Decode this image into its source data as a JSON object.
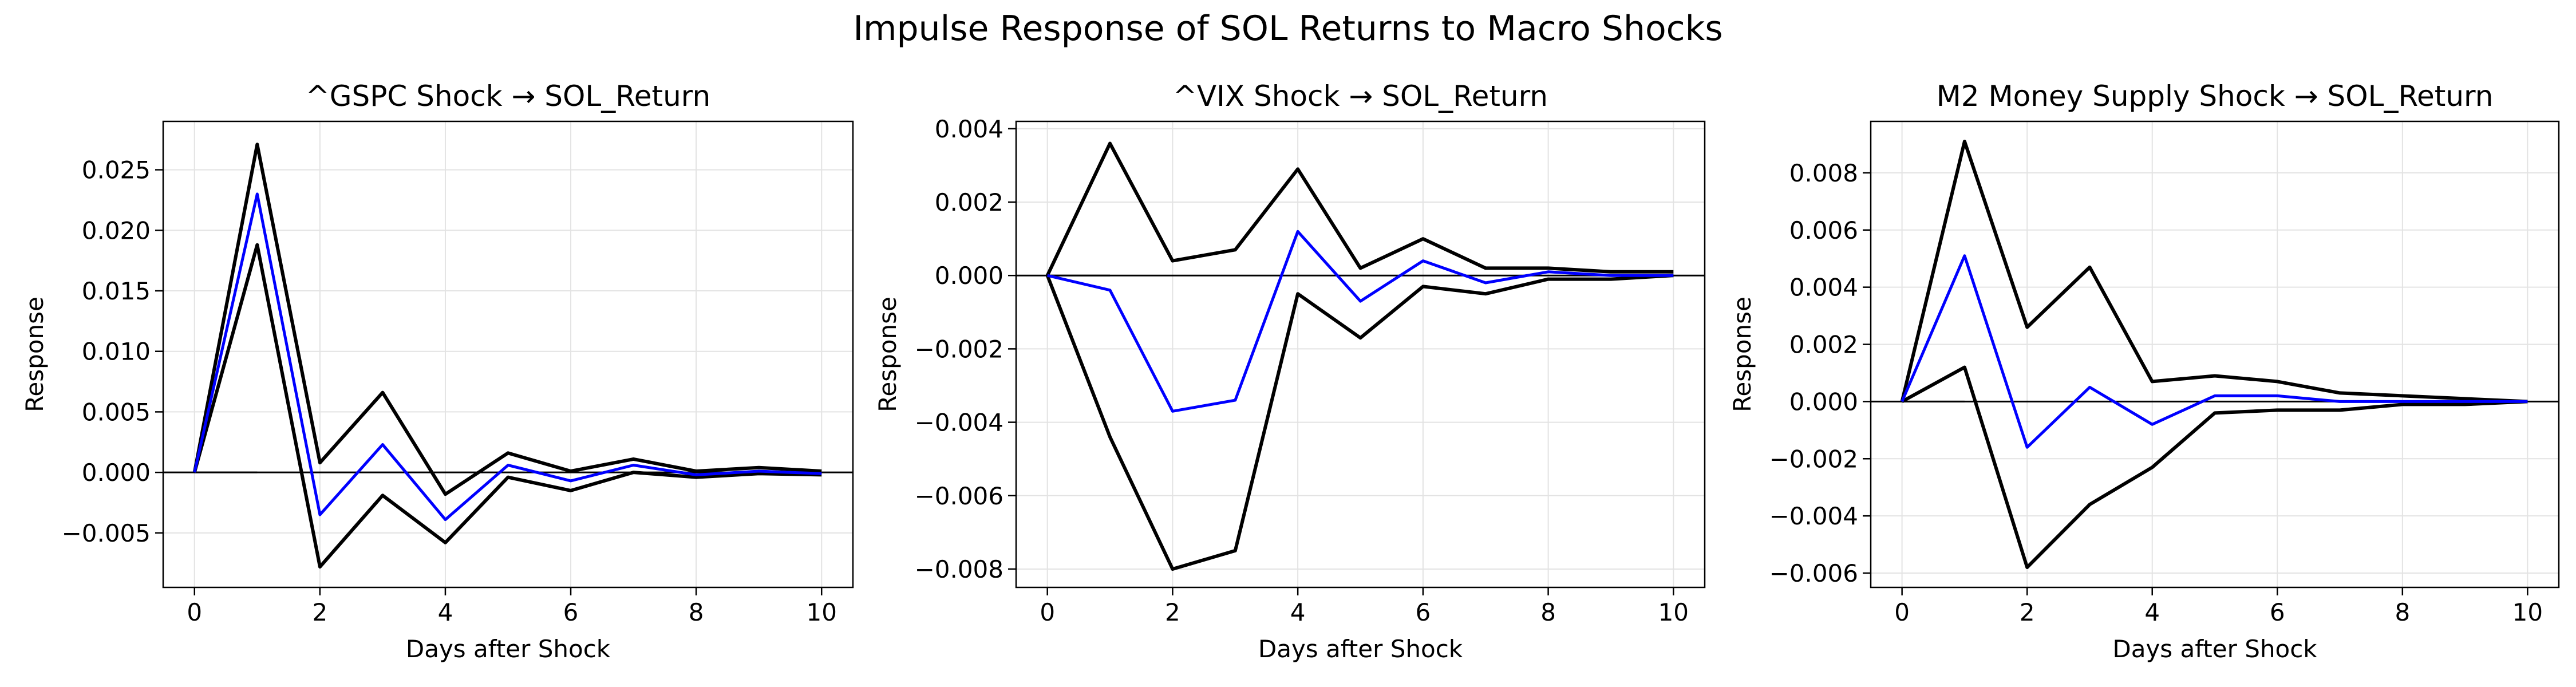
{
  "figure": {
    "title": "Impulse Response of SOL Returns to Macro Shocks"
  },
  "chart_data": [
    {
      "type": "line",
      "title": "^GSPC Shock → SOL_Return",
      "xlabel": "Days after Shock",
      "ylabel": "Response",
      "x": [
        0,
        1,
        2,
        3,
        4,
        5,
        6,
        7,
        8,
        9,
        10
      ],
      "xlim": [
        -0.5,
        10.5
      ],
      "ylim": [
        -0.0095,
        0.029
      ],
      "xticks": [
        0,
        2,
        4,
        6,
        8,
        10
      ],
      "yticks": [
        -0.005,
        0.0,
        0.005,
        0.01,
        0.015,
        0.02,
        0.025
      ],
      "ytick_labels": [
        "−0.005",
        "0.000",
        "0.005",
        "0.010",
        "0.015",
        "0.020",
        "0.025"
      ],
      "zero_line": [
        0,
        1
      ],
      "grid": true,
      "series": [
        {
          "role": "upper",
          "color": "#000000",
          "values": [
            0.0,
            0.0271,
            0.0008,
            0.0066,
            -0.0018,
            0.0016,
            0.0001,
            0.0011,
            0.0001,
            0.0004,
            0.0001
          ]
        },
        {
          "role": "lower",
          "color": "#000000",
          "values": [
            0.0,
            0.0188,
            -0.0078,
            -0.0019,
            -0.0058,
            -0.0004,
            -0.0015,
            0.0,
            -0.0004,
            -0.0001,
            -0.0002
          ]
        },
        {
          "role": "irf",
          "color": "#0000ff",
          "values": [
            0.0,
            0.023,
            -0.0035,
            0.0023,
            -0.0039,
            0.0006,
            -0.0007,
            0.0006,
            -0.0002,
            0.0001,
            -0.0001
          ]
        }
      ]
    },
    {
      "type": "line",
      "title": "^VIX Shock → SOL_Return",
      "xlabel": "Days after Shock",
      "ylabel": "Response",
      "x": [
        0,
        1,
        2,
        3,
        4,
        5,
        6,
        7,
        8,
        9,
        10
      ],
      "xlim": [
        -0.5,
        10.5
      ],
      "ylim": [
        -0.0085,
        0.0042
      ],
      "xticks": [
        0,
        2,
        4,
        6,
        8,
        10
      ],
      "yticks": [
        -0.008,
        -0.006,
        -0.004,
        -0.002,
        0.0,
        0.002,
        0.004
      ],
      "ytick_labels": [
        "−0.008",
        "−0.006",
        "−0.004",
        "−0.002",
        "0.000",
        "0.002",
        "0.004"
      ],
      "zero_line": [
        0,
        1
      ],
      "grid": true,
      "series": [
        {
          "role": "upper",
          "color": "#000000",
          "values": [
            0.0,
            0.0036,
            0.0004,
            0.0007,
            0.0029,
            0.0002,
            0.001,
            0.0002,
            0.0002,
            0.0001,
            0.0001
          ]
        },
        {
          "role": "lower",
          "color": "#000000",
          "values": [
            0.0,
            -0.0044,
            -0.008,
            -0.0075,
            -0.0005,
            -0.0017,
            -0.0003,
            -0.0005,
            -0.0001,
            -0.0001,
            0.0
          ]
        },
        {
          "role": "irf",
          "color": "#0000ff",
          "values": [
            0.0,
            -0.0004,
            -0.0037,
            -0.0034,
            0.0012,
            -0.0007,
            0.0004,
            -0.0002,
            0.0001,
            0.0,
            0.0
          ]
        }
      ]
    },
    {
      "type": "line",
      "title": "M2 Money Supply Shock → SOL_Return",
      "xlabel": "Days after Shock",
      "ylabel": "Response",
      "x": [
        0,
        1,
        2,
        3,
        4,
        5,
        6,
        7,
        8,
        9,
        10
      ],
      "xlim": [
        -0.5,
        10.5
      ],
      "ylim": [
        -0.0065,
        0.0098
      ],
      "xticks": [
        0,
        2,
        4,
        6,
        8,
        10
      ],
      "yticks": [
        -0.006,
        -0.004,
        -0.002,
        0.0,
        0.002,
        0.004,
        0.006,
        0.008
      ],
      "ytick_labels": [
        "−0.006",
        "−0.004",
        "−0.002",
        "0.000",
        "0.002",
        "0.004",
        "0.006",
        "0.008"
      ],
      "zero_line": [
        0,
        1
      ],
      "grid": true,
      "series": [
        {
          "role": "upper",
          "color": "#000000",
          "values": [
            0.0,
            0.0091,
            0.0026,
            0.0047,
            0.0007,
            0.0009,
            0.0007,
            0.0003,
            0.0002,
            0.0001,
            0.0
          ]
        },
        {
          "role": "lower",
          "color": "#000000",
          "values": [
            0.0,
            0.0012,
            -0.0058,
            -0.0036,
            -0.0023,
            -0.0004,
            -0.0003,
            -0.0003,
            -0.0001,
            -0.0001,
            0.0
          ]
        },
        {
          "role": "irf",
          "color": "#0000ff",
          "values": [
            0.0,
            0.0051,
            -0.0016,
            0.0005,
            -0.0008,
            0.0002,
            0.0002,
            0.0,
            0.0,
            0.0,
            0.0
          ]
        }
      ]
    }
  ]
}
